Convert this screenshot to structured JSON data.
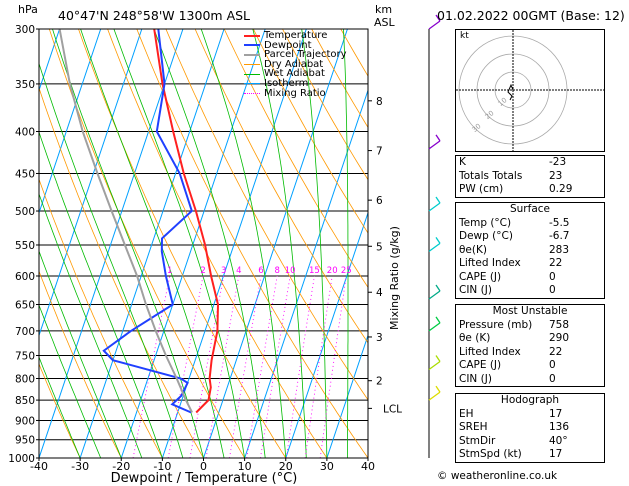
{
  "header": {
    "location": "40°47'N  248°58'W  1300m  ASL",
    "pressure_unit": "hPa",
    "km_unit": "km",
    "asl_unit": "ASL",
    "datetime": "01.02.2022  00GMT  (Base: 12)"
  },
  "legend": [
    {
      "label": "Temperature",
      "color": "#ff2020",
      "style": "solid"
    },
    {
      "label": "Dewpoint",
      "color": "#2040ff",
      "style": "solid"
    },
    {
      "label": "Parcel Trajectory",
      "color": "#a0a0a0",
      "style": "solid"
    },
    {
      "label": "Dry Adiabat",
      "color": "#ff9900",
      "style": "thin"
    },
    {
      "label": "Wet Adiabat",
      "color": "#00bb00",
      "style": "thin"
    },
    {
      "label": "Isotherm",
      "color": "#00a0ff",
      "style": "thin"
    },
    {
      "label": "Mixing Ratio",
      "color": "#ff00ff",
      "style": "dotted"
    }
  ],
  "chart_data": {
    "type": "skew-t",
    "xlabel": "Dewpoint / Temperature (°C)",
    "ylabel_right": "Mixing Ratio (g/kg)",
    "pressure_levels": [
      300,
      350,
      400,
      450,
      500,
      550,
      600,
      650,
      700,
      750,
      800,
      850,
      900,
      950,
      1000
    ],
    "temperature_ticks": [
      -40,
      -30,
      -20,
      -10,
      0,
      10,
      20,
      30,
      40
    ],
    "xlim": [
      -40,
      40
    ],
    "ylim": [
      1000,
      300
    ],
    "km_ticks": [
      {
        "label": "8",
        "p": 367
      },
      {
        "label": "7",
        "p": 422
      },
      {
        "label": "6",
        "p": 485
      },
      {
        "label": "5",
        "p": 552
      },
      {
        "label": "4",
        "p": 628
      },
      {
        "label": "3",
        "p": 712
      },
      {
        "label": "2",
        "p": 805
      },
      {
        "label": "LCL",
        "p": 870
      }
    ],
    "mixing_ratio_labels": [
      "1",
      "2",
      "3",
      "4",
      "6",
      "8",
      "10",
      "15",
      "20",
      "25"
    ],
    "mixing_ratio_values": [
      1,
      2,
      3,
      4,
      6,
      8,
      10,
      15,
      20,
      25
    ],
    "series": [
      {
        "name": "Temperature",
        "color": "#ff2020",
        "p": [
          880,
          850,
          820,
          800,
          760,
          700,
          650,
          600,
          550,
          500,
          450,
          400,
          350,
          300
        ],
        "t": [
          -5.5,
          -3.5,
          -4.0,
          -5.0,
          -6.0,
          -7.0,
          -9.0,
          -13.0,
          -17.0,
          -22.0,
          -28.0,
          -34.0,
          -40.5,
          -47.0
        ]
      },
      {
        "name": "Dewpoint",
        "color": "#2040ff",
        "p": [
          880,
          860,
          840,
          810,
          800,
          760,
          740,
          700,
          650,
          600,
          560,
          540,
          500,
          450,
          400,
          350,
          300
        ],
        "t": [
          -6.7,
          -12.0,
          -10.5,
          -10.0,
          -12.0,
          -30.0,
          -33.0,
          -28.0,
          -20.0,
          -24.0,
          -27.0,
          -28.0,
          -23.0,
          -29.0,
          -38.0,
          -40.0,
          -46.0
        ]
      },
      {
        "name": "Parcel Trajectory",
        "color": "#a0a0a0",
        "p": [
          880,
          850,
          800,
          750,
          700,
          650,
          600,
          550,
          500,
          450,
          400,
          350,
          300
        ],
        "t": [
          -6.5,
          -9.0,
          -13.0,
          -17.5,
          -22.0,
          -26.5,
          -31.0,
          -36.5,
          -42.5,
          -49.0,
          -56.0,
          -63.0,
          -70.0
        ]
      }
    ]
  },
  "indices": {
    "rows": [
      {
        "label": "K",
        "value": "-23"
      },
      {
        "label": "Totals Totals",
        "value": "23"
      },
      {
        "label": "PW (cm)",
        "value": "0.29"
      }
    ]
  },
  "surface": {
    "title": "Surface",
    "rows": [
      {
        "label": "Temp (°C)",
        "value": "-5.5"
      },
      {
        "label": "Dewp (°C)",
        "value": "-6.7"
      },
      {
        "label": "θe(K)",
        "value": "283"
      },
      {
        "label": "Lifted Index",
        "value": "22"
      },
      {
        "label": "CAPE (J)",
        "value": "0"
      },
      {
        "label": "CIN (J)",
        "value": "0"
      }
    ]
  },
  "most_unstable": {
    "title": "Most Unstable",
    "rows": [
      {
        "label": "Pressure (mb)",
        "value": "758"
      },
      {
        "label": "θe (K)",
        "value": "290"
      },
      {
        "label": "Lifted Index",
        "value": "22"
      },
      {
        "label": "CAPE (J)",
        "value": "0"
      },
      {
        "label": "CIN (J)",
        "value": "0"
      }
    ]
  },
  "hodograph_table": {
    "title": "Hodograph",
    "rows": [
      {
        "label": "EH",
        "value": "17"
      },
      {
        "label": "SREH",
        "value": "136"
      },
      {
        "label": "StmDir",
        "value": "40°"
      },
      {
        "label": "StmSpd (kt)",
        "value": "17"
      }
    ]
  },
  "hodograph": {
    "unit_label": "kt",
    "ring_labels": [
      "10",
      "20",
      "30"
    ]
  },
  "credit": "© weatheronline.co.uk",
  "colors": {
    "temperature": "#ff2020",
    "dewpoint": "#2040ff",
    "parcel": "#a0a0a0",
    "dry_adiabat": "#ff9900",
    "wet_adiabat": "#00bb00",
    "isotherm": "#00a0ff",
    "mixing_ratio": "#ff00ff",
    "wind_barb": "#00cccc"
  }
}
